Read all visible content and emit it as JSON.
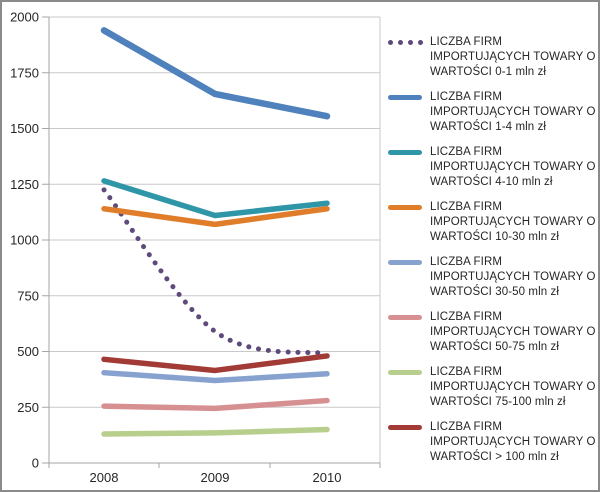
{
  "chart_data": {
    "type": "line",
    "title": "",
    "xlabel": "",
    "ylabel": "",
    "categories": [
      "2008",
      "2009",
      "2010"
    ],
    "ylim": [
      0,
      2000
    ],
    "ytick_step": 250,
    "yticks": [
      0,
      250,
      500,
      750,
      1000,
      1250,
      1500,
      1750,
      2000
    ],
    "grid": true,
    "legend_position": "right",
    "series": [
      {
        "key": "0-1-mln",
        "name": "LICZBA FIRM IMPORTUJĄCYCH TOWARY O WARTOŚCI 0-1 mln zł",
        "label_lines": [
          "LICZBA FIRM",
          "IMPORTUJĄCYCH TOWARY O",
          "WARTOŚCI 0-1 mln zł"
        ],
        "values": [
          1225,
          590,
          490
        ],
        "color": "#5f4a7c",
        "line_style": "dotted",
        "smooth": true
      },
      {
        "key": "1-4-mln",
        "name": "LICZBA FIRM IMPORTUJĄCYCH TOWARY O WARTOŚCI 1-4 mln zł",
        "label_lines": [
          "LICZBA FIRM",
          "IMPORTUJĄCYCH TOWARY O",
          "WARTOŚCI 1-4 mln zł"
        ],
        "values": [
          1940,
          1655,
          1555
        ],
        "color": "#4f81bd",
        "line_style": "solid",
        "smooth": false
      },
      {
        "key": "4-10-mln",
        "name": "LICZBA FIRM IMPORTUJĄCYCH TOWARY O WARTOŚCI 4-10 mln zł",
        "label_lines": [
          "LICZBA FIRM",
          "IMPORTUJĄCYCH TOWARY O",
          "WARTOŚCI 4-10 mln zł"
        ],
        "values": [
          1265,
          1110,
          1165
        ],
        "color": "#2f96a8",
        "line_style": "solid",
        "smooth": false
      },
      {
        "key": "10-30-mln",
        "name": "LICZBA FIRM IMPORTUJĄCYCH TOWARY O WARTOŚCI 10-30 mln zł",
        "label_lines": [
          "LICZBA FIRM",
          "IMPORTUJĄCYCH TOWARY O",
          "WARTOŚCI 10-30 mln zł"
        ],
        "values": [
          1140,
          1070,
          1140
        ],
        "color": "#e07d2b",
        "line_style": "solid",
        "smooth": false
      },
      {
        "key": "30-50-mln",
        "name": "LICZBA FIRM IMPORTUJĄCYCH TOWARY O WARTOŚCI 30-50 mln zł",
        "label_lines": [
          "LICZBA FIRM",
          "IMPORTUJĄCYCH TOWARY O",
          "WARTOŚCI 30-50 mln zł"
        ],
        "values": [
          405,
          370,
          400
        ],
        "color": "#87a2cf",
        "line_style": "solid",
        "smooth": false
      },
      {
        "key": "50-75-mln",
        "name": "LICZBA FIRM IMPORTUJĄCYCH TOWARY O WARTOŚCI 50-75 mln zł",
        "label_lines": [
          "LICZBA FIRM",
          "IMPORTUJĄCYCH TOWARY O",
          "WARTOŚCI 50-75 mln zł"
        ],
        "values": [
          255,
          245,
          280
        ],
        "color": "#d69092",
        "line_style": "solid",
        "smooth": false
      },
      {
        "key": "75-100-mln",
        "name": "LICZBA FIRM IMPORTUJĄCYCH TOWARY O WARTOŚCI 75-100 mln zł",
        "label_lines": [
          "LICZBA FIRM",
          "IMPORTUJĄCYCH TOWARY O",
          "WARTOŚCI 75-100 mln zł"
        ],
        "values": [
          130,
          135,
          150
        ],
        "color": "#b7ce8c",
        "line_style": "solid",
        "smooth": false
      },
      {
        "key": "gt-100-mln",
        "name": "LICZBA FIRM IMPORTUJĄCYCH TOWARY O WARTOŚCI > 100 mln zł",
        "label_lines": [
          "LICZBA FIRM",
          "IMPORTUJĄCYCH TOWARY O",
          "WARTOŚCI > 100 mln zł"
        ],
        "values": [
          465,
          415,
          480
        ],
        "color": "#a23b35",
        "line_style": "solid",
        "smooth": false
      }
    ]
  },
  "style_colors": {
    "grid": "#c9c9c9",
    "axis": "#a6a6a6",
    "tick_label": "#262626",
    "frame_border": "#8a8a8a",
    "background": "#ffffff"
  }
}
